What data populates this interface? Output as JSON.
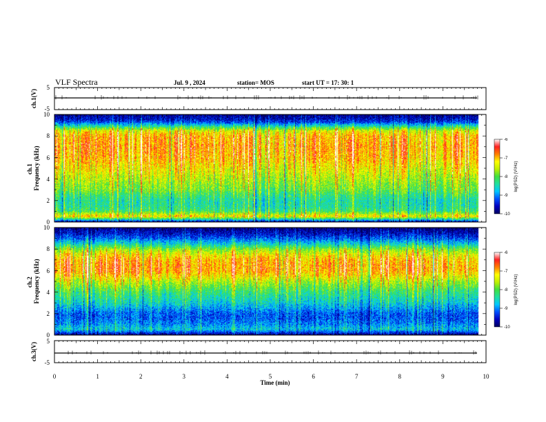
{
  "header": {
    "title": "VLF Spectra",
    "date": "Jul. 9 , 2024",
    "station": "station= MOS",
    "start": "start UT = 17: 30: 1"
  },
  "colors": {
    "colormap": [
      "#000060",
      "#0000c0",
      "#0050ff",
      "#00c8ff",
      "#20e0a0",
      "#40e040",
      "#c0f000",
      "#ffff00",
      "#ff8000",
      "#ff2020",
      "#ffffff"
    ]
  },
  "chart_data": [
    {
      "type": "line",
      "panel": "ch1-waveform",
      "ylabel": "ch.1(V)",
      "ylim": [
        -5,
        5
      ],
      "yticks": [
        "5",
        "-5"
      ],
      "xlim": [
        0,
        10
      ],
      "baseline_value": 0
    },
    {
      "type": "heatmap",
      "panel": "ch1-spectrogram",
      "ylabel": "ch.1\nFrequency (kHz)",
      "ylim": [
        0,
        10
      ],
      "yticks": [
        "0",
        "2",
        "4",
        "6",
        "8",
        "10"
      ],
      "xlim": [
        0,
        10
      ],
      "data_end_min": 9.82,
      "colorbar": {
        "label": "log(PSD) (V²/Hz)",
        "range": [
          -10,
          -6
        ],
        "ticks": [
          "-6",
          "-7",
          "-8",
          "-9",
          "-10"
        ]
      },
      "spectral_profile": {
        "freq_khz": [
          0,
          0.5,
          1,
          1.5,
          2,
          2.5,
          3,
          3.5,
          4,
          5,
          6,
          7,
          8,
          8.5,
          9,
          9.3,
          9.6,
          10
        ],
        "mean_log_psd": [
          -9.6,
          -7.2,
          -8.2,
          -8.4,
          -8.4,
          -8.2,
          -7.9,
          -7.8,
          -7.6,
          -7.3,
          -7.0,
          -6.9,
          -7.0,
          -7.4,
          -8.6,
          -9.3,
          -9.6,
          -9.8
        ]
      }
    },
    {
      "type": "heatmap",
      "panel": "ch2-spectrogram",
      "ylabel": "ch.2\nFrequency (kHz)",
      "ylim": [
        0,
        10
      ],
      "yticks": [
        "0",
        "2",
        "4",
        "6",
        "8",
        "10"
      ],
      "xlim": [
        0,
        10
      ],
      "data_end_min": 9.82,
      "colorbar": {
        "label": "log(PSD) (V²/Hz)",
        "range": [
          -10,
          -6
        ],
        "ticks": [
          "-6",
          "-7",
          "-8",
          "-9",
          "-10"
        ]
      },
      "spectral_profile": {
        "freq_khz": [
          0,
          0.5,
          1,
          1.5,
          2,
          3,
          4,
          5,
          5.5,
          6,
          6.5,
          7,
          7.5,
          8,
          8.5,
          9,
          9.5,
          10
        ],
        "mean_log_psd": [
          -9.8,
          -8.7,
          -9.0,
          -9.2,
          -9.2,
          -8.6,
          -8.2,
          -7.6,
          -7.2,
          -6.9,
          -6.9,
          -7.0,
          -7.3,
          -7.8,
          -8.6,
          -9.2,
          -9.6,
          -9.9
        ]
      }
    },
    {
      "type": "line",
      "panel": "ch3-waveform",
      "ylabel": "ch.3(V)",
      "ylim": [
        -5,
        5
      ],
      "yticks": [
        "5",
        "-5"
      ],
      "xlim": [
        0,
        10
      ],
      "baseline_value": -1
    }
  ],
  "x_axis": {
    "xlabel": "Time (min)",
    "ticks": [
      "0",
      "1",
      "2",
      "3",
      "4",
      "5",
      "6",
      "7",
      "8",
      "9",
      "10"
    ]
  }
}
